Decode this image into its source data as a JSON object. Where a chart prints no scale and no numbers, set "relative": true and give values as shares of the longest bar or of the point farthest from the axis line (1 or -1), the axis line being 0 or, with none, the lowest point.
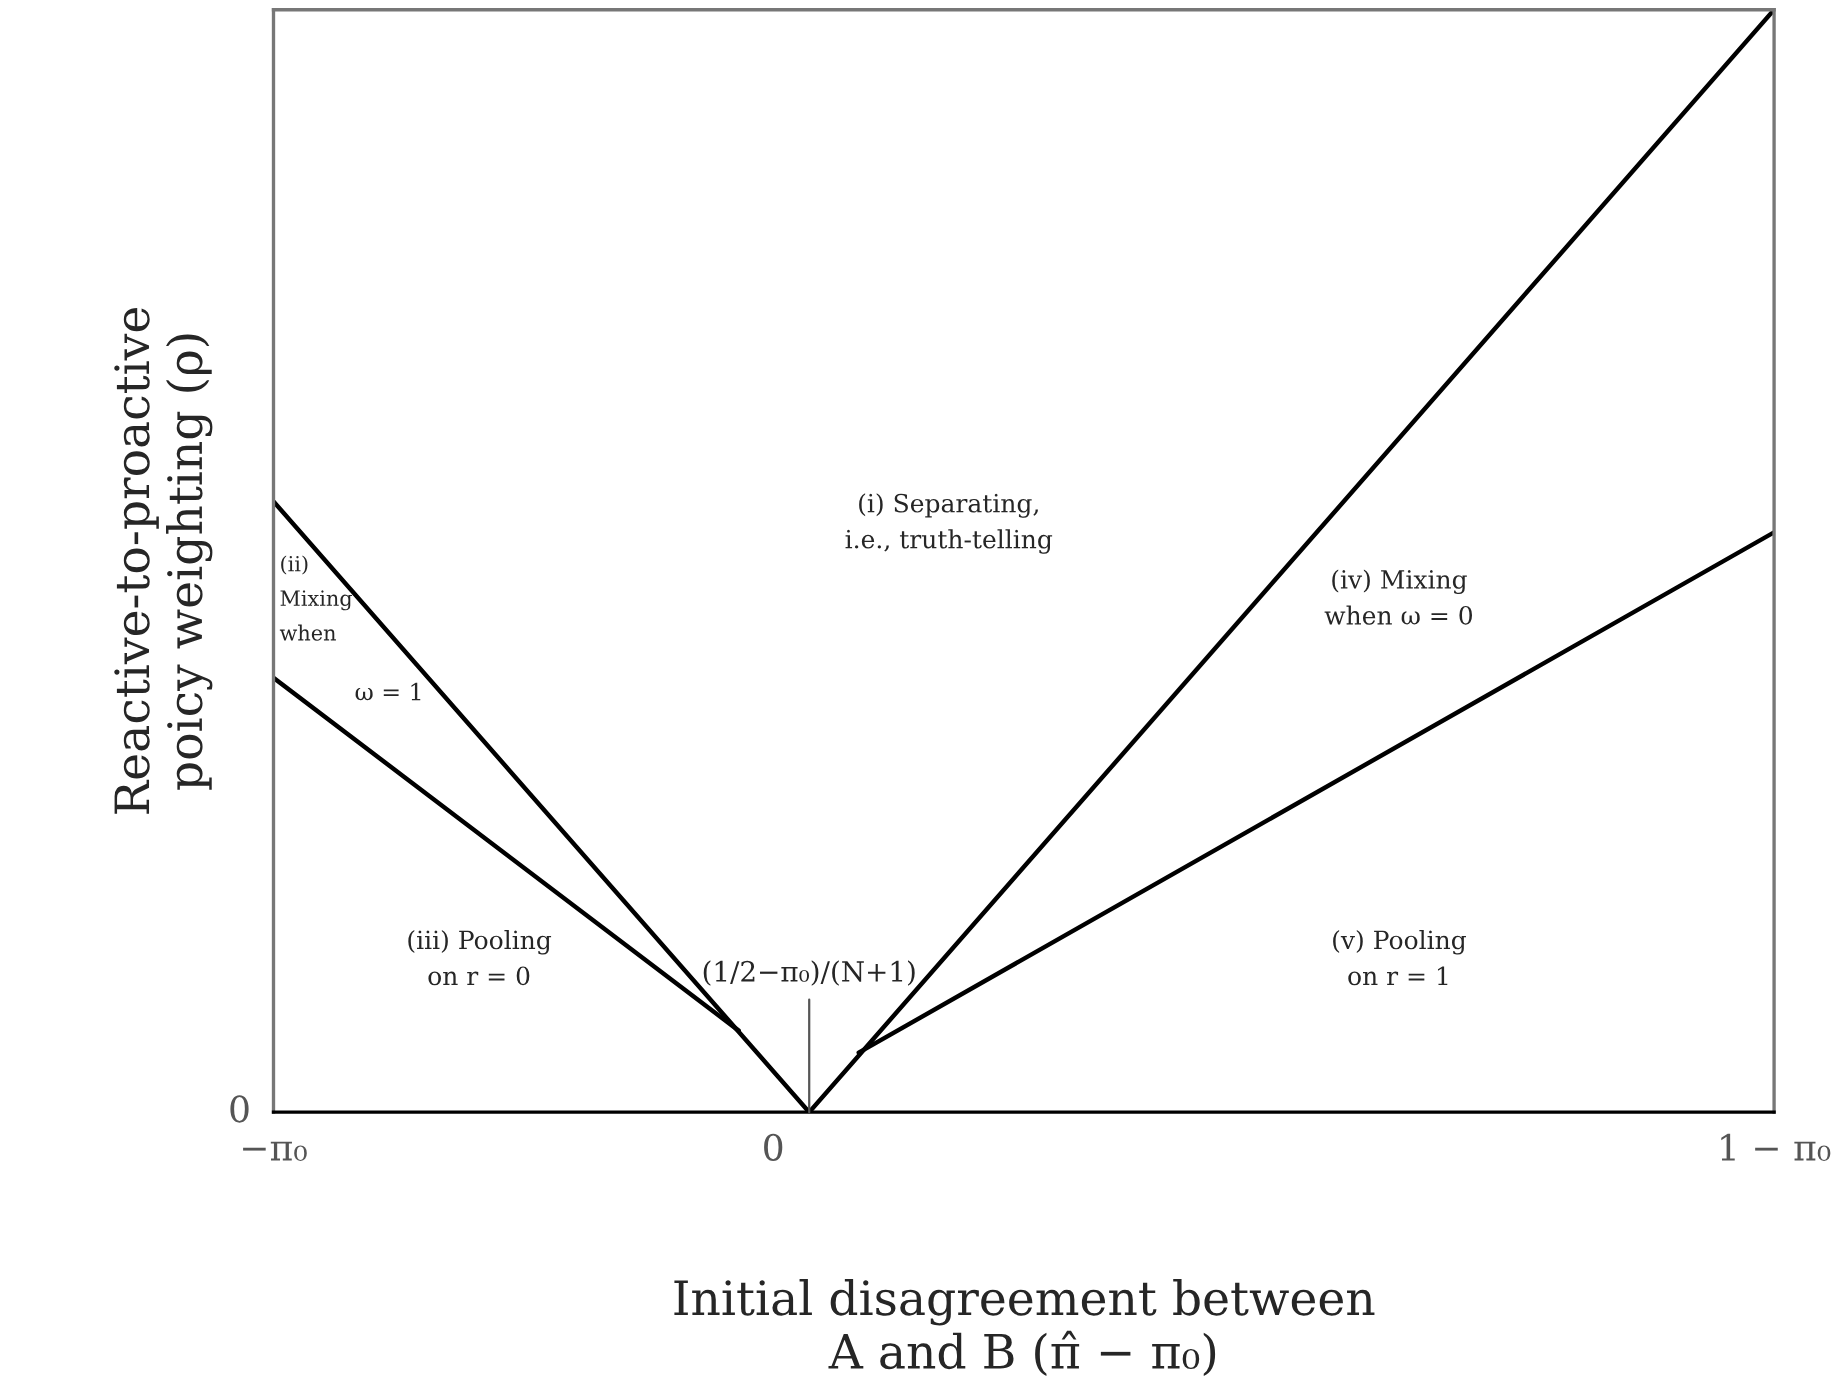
{
  "chart_data": {
    "type": "line",
    "relative": true,
    "xlabel": "Initial disagreement between\nA and B (π̂ − π₀)",
    "ylabel": "Reactive-to-proactive\npoicy weighting (ρ)",
    "xlim": [
      -0.333,
      0.667
    ],
    "xticks": [
      {
        "value": -0.333,
        "label": "−π₀"
      },
      0,
      {
        "value": 0.667,
        "label": "1 − π₀"
      }
    ],
    "series": [
      {
        "color": "#000000",
        "x": [
          -0.333,
          0.024
        ],
        "values": [
          0.554,
          0
        ]
      },
      {
        "color": "#000000",
        "x": [
          -0.333,
          -0.023
        ],
        "values": [
          0.394,
          0.074
        ]
      },
      {
        "color": "#000000",
        "x": [
          0.024,
          0.667
        ],
        "values": [
          0,
          1
        ]
      },
      {
        "color": "#000000",
        "x": [
          0.057,
          0.667
        ],
        "values": [
          0.054,
          0.526
        ]
      }
    ],
    "annotations": [
      "(i) Separating,\ni.e., truth-telling",
      "(ii)\nMixing\nwhen\nω = 1",
      "(iii) Pooling\non r = 0",
      "(iv) Mixing\nwhen ω = 0",
      "(v) Pooling\non r = 1",
      {
        "text": "(1/2−π₀)/(N+1)",
        "x": 0.024,
        "y": 0
      },
      "0"
    ],
    "legend": false,
    "grid": false
  }
}
